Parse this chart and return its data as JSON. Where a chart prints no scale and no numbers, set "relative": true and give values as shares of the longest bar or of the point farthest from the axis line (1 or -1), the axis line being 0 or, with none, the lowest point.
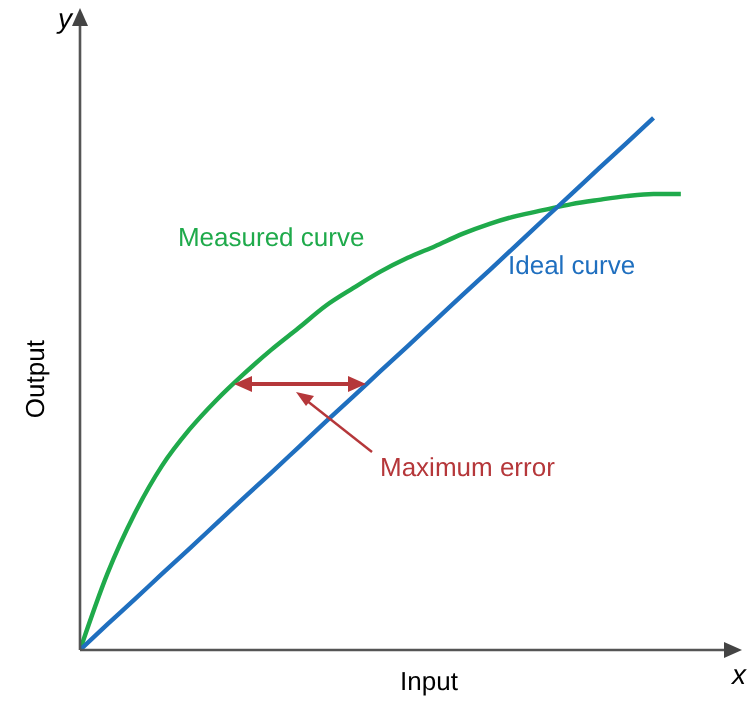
{
  "chart_data": {
    "type": "line",
    "relative": true,
    "xlabel": "Input",
    "ylabel": "Output",
    "annotations": [
      "Maximum error",
      "x",
      "y"
    ],
    "categories": [
      null,
      null,
      null,
      null,
      null,
      null,
      null,
      null,
      null,
      null,
      null,
      null,
      null,
      null,
      null,
      null,
      null,
      null,
      null,
      null,
      null,
      null,
      null
    ],
    "series": [
      {
        "name": "Measured curve",
        "color": "#1faa4b",
        "values": [
          0,
          0.143,
          0.256,
          0.346,
          0.414,
          0.47,
          0.519,
          0.564,
          0.605,
          0.647,
          0.68,
          0.711,
          0.737,
          0.759,
          0.782,
          0.801,
          0.816,
          0.827,
          0.838,
          0.846,
          0.853,
          0.857,
          0.857
        ]
      },
      {
        "name": "Ideal curve",
        "color": "#1f6fbf",
        "values": [
          0,
          0.048,
          0.095,
          0.143,
          0.19,
          0.238,
          0.286,
          0.333,
          0.381,
          0.429,
          0.476,
          0.524,
          0.571,
          0.619,
          0.667,
          0.714,
          0.762,
          0.81,
          0.857,
          0.905,
          0.952,
          1,
          null
        ]
      }
    ],
    "grid": false,
    "legend": false,
    "marker": "none",
    "line_style": "solid"
  }
}
